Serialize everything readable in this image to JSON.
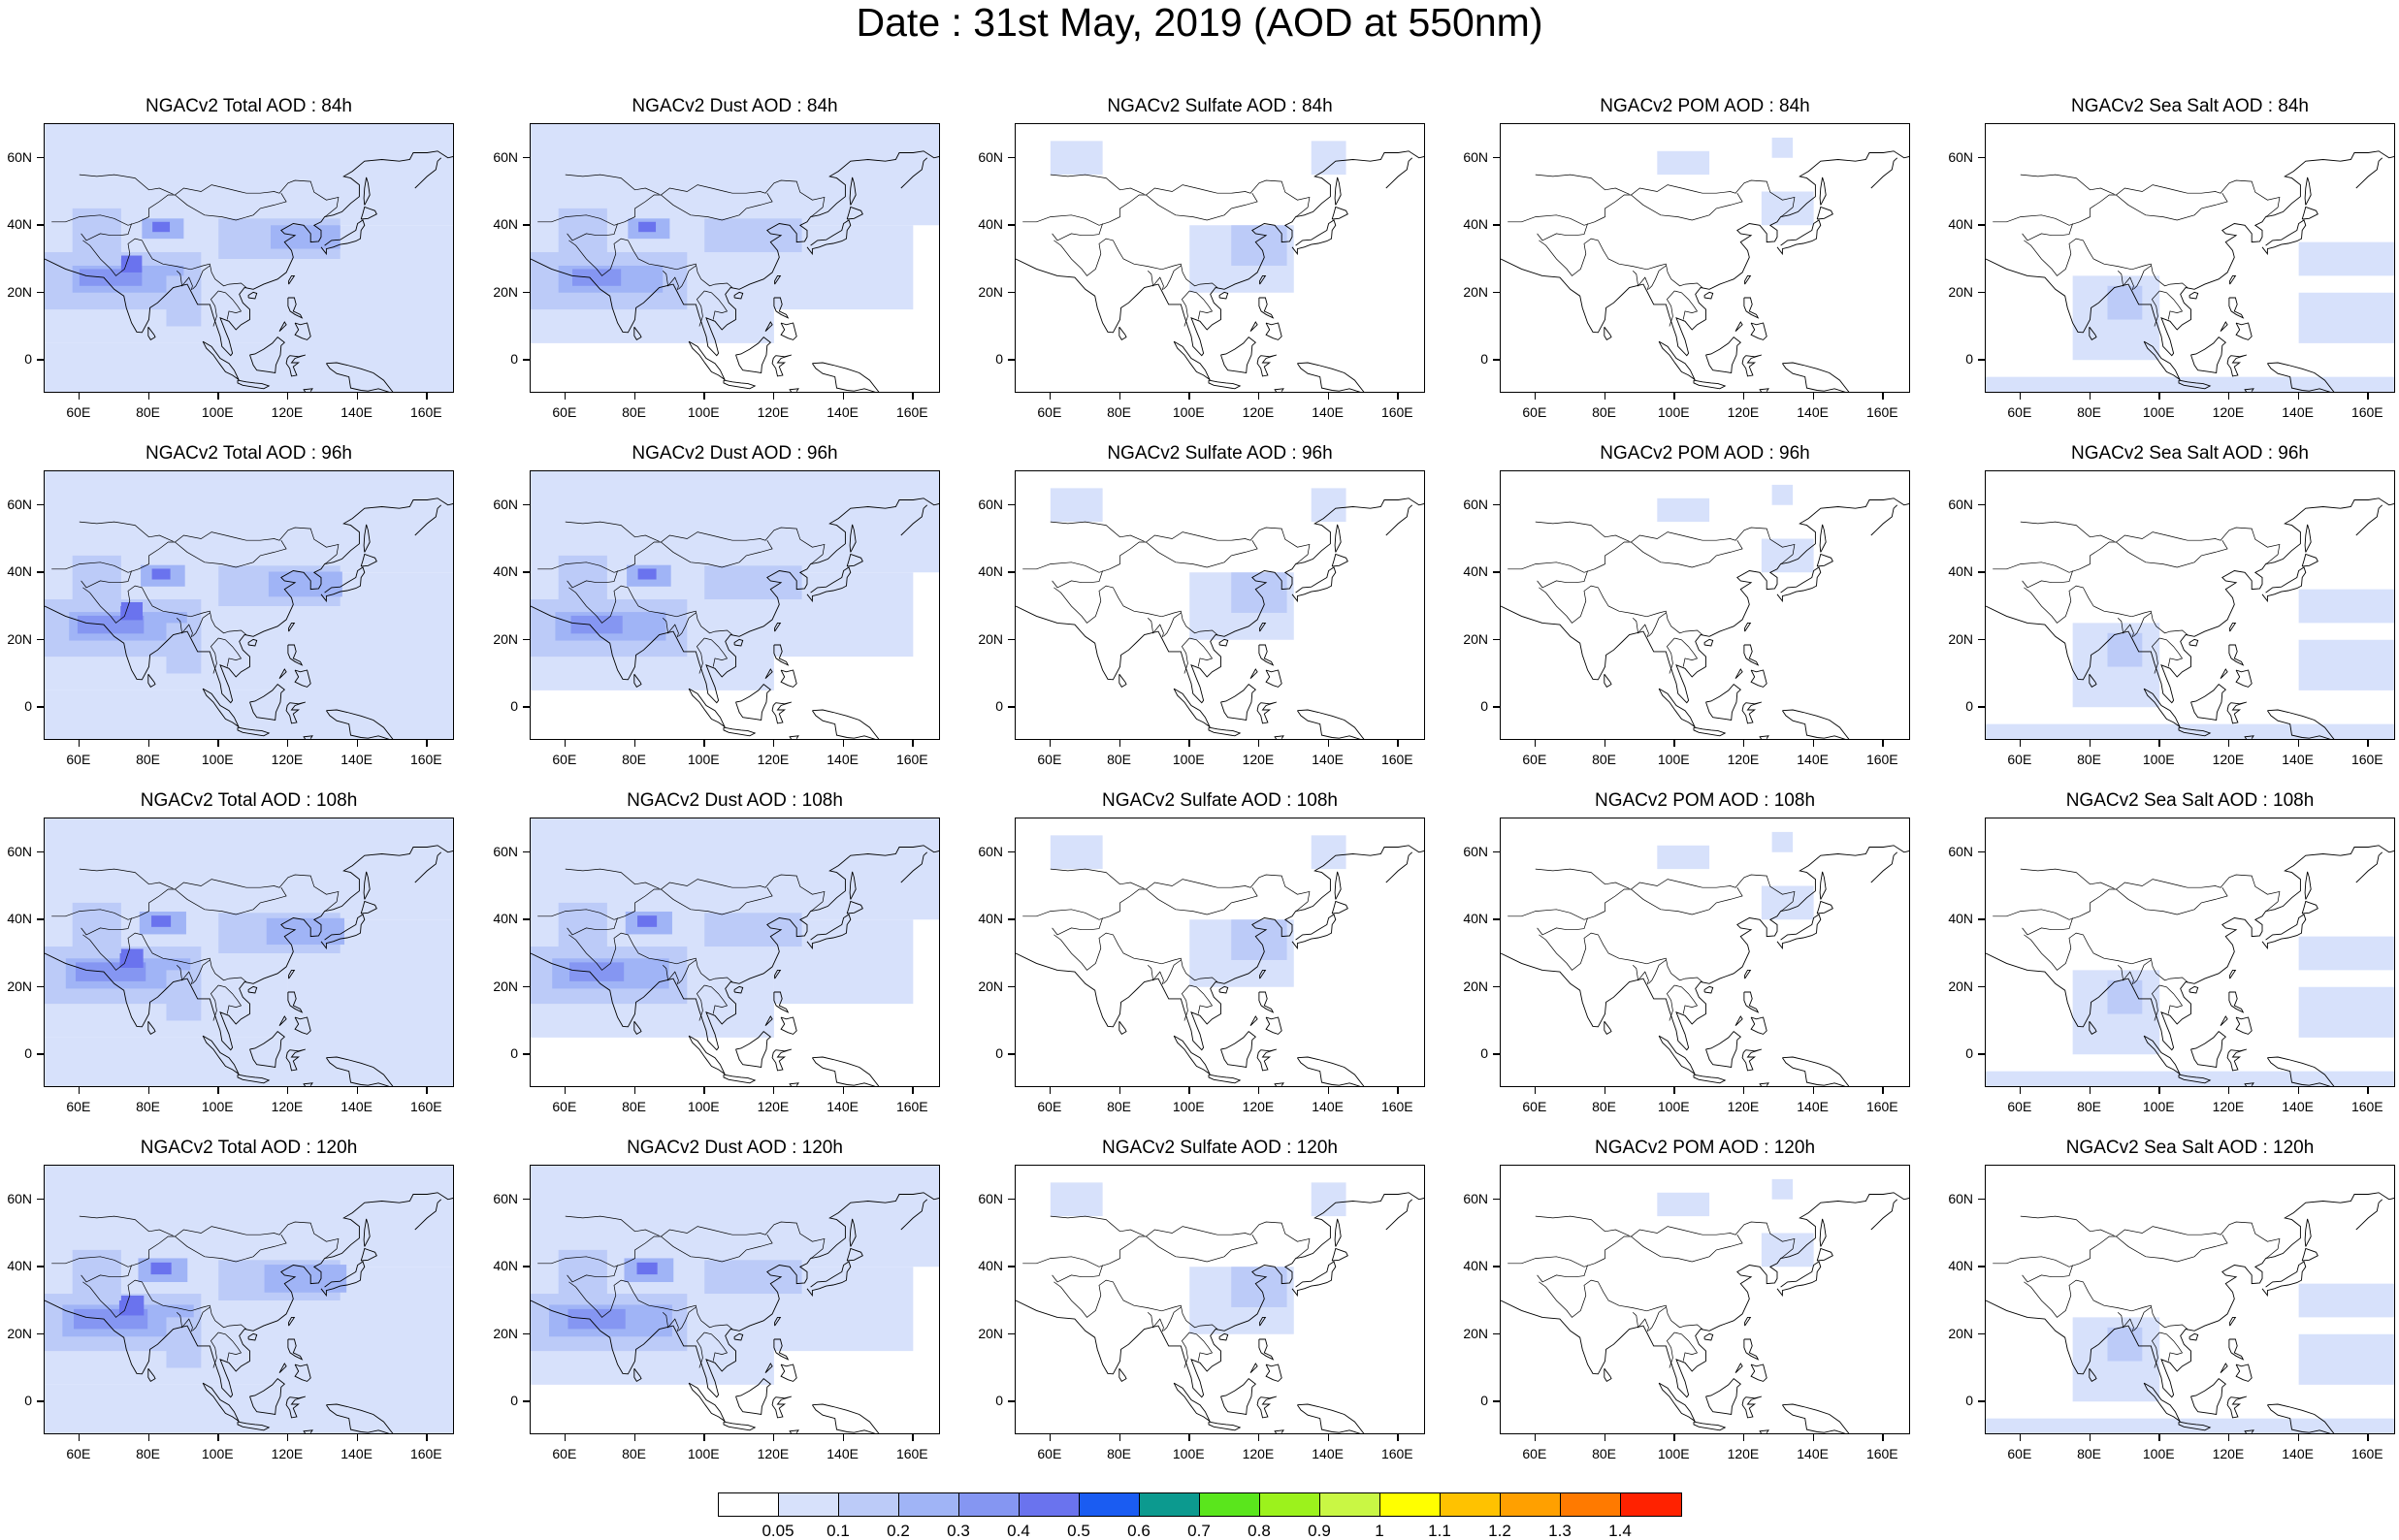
{
  "title": "Date : 31st May, 2019 (AOD at 550nm)",
  "x_ticks": [
    "60E",
    "80E",
    "100E",
    "120E",
    "140E",
    "160E"
  ],
  "y_ticks": [
    "60N",
    "40N",
    "20N",
    "0"
  ],
  "map_extent": {
    "lon": [
      50,
      168
    ],
    "lat": [
      -10,
      70
    ]
  },
  "species": [
    {
      "key": "total",
      "label": "NGACv2 Total AOD"
    },
    {
      "key": "dust",
      "label": "NGACv2 Dust AOD"
    },
    {
      "key": "sulfate",
      "label": "NGACv2 Sulfate AOD"
    },
    {
      "key": "pom",
      "label": "NGACv2 POM AOD"
    },
    {
      "key": "seasalt",
      "label": "NGACv2 Sea Salt AOD"
    }
  ],
  "forecast_hours": [
    "84h",
    "96h",
    "108h",
    "120h"
  ],
  "panels": [
    [
      "NGACv2 Total AOD : 84h",
      "NGACv2 Dust AOD : 84h",
      "NGACv2 Sulfate AOD : 84h",
      "NGACv2 POM AOD : 84h",
      "NGACv2 Sea Salt AOD : 84h"
    ],
    [
      "NGACv2 Total AOD : 96h",
      "NGACv2 Dust AOD : 96h",
      "NGACv2 Sulfate AOD : 96h",
      "NGACv2 POM AOD : 96h",
      "NGACv2 Sea Salt AOD : 96h"
    ],
    [
      "NGACv2 Total AOD : 108h",
      "NGACv2 Dust AOD : 108h",
      "NGACv2 Sulfate AOD : 108h",
      "NGACv2 POM AOD : 108h",
      "NGACv2 Sea Salt AOD : 108h"
    ],
    [
      "NGACv2 Total AOD : 120h",
      "NGACv2 Dust AOD : 120h",
      "NGACv2 Sulfate AOD : 120h",
      "NGACv2 POM AOD : 120h",
      "NGACv2 Sea Salt  AOD : 120h"
    ]
  ],
  "colorbar": {
    "labels": [
      "0.05",
      "0.1",
      "0.2",
      "0.3",
      "0.4",
      "0.5",
      "0.6",
      "0.7",
      "0.8",
      "0.9",
      "1",
      "1.1",
      "1.2",
      "1.3",
      "1.4"
    ],
    "colors": [
      "#ffffff",
      "#d7e1fb",
      "#bccbf8",
      "#a0b4f6",
      "#8596f2",
      "#6a73ee",
      "#1a5cf2",
      "#0c9a8f",
      "#5ae61c",
      "#9cf21c",
      "#c9f744",
      "#ffff00",
      "#ffc200",
      "#ffa000",
      "#ff7a00",
      "#ff2200"
    ]
  },
  "palette": {
    "map_background": "#ffffff",
    "coastline": "#000000"
  }
}
